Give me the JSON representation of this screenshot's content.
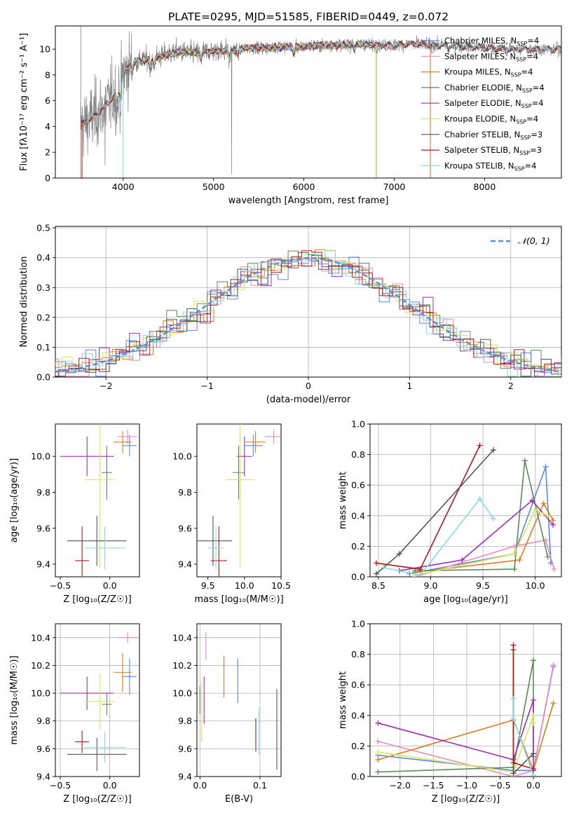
{
  "figure": {
    "title": "PLATE=0295, MJD=51585, FIBERID=0449, z=0.072"
  },
  "colors": {
    "chabrier_miles": "#5b86e5",
    "salpeter_miles": "#e88ac0",
    "kroupa_miles": "#e07b1b",
    "chabrier_elodie": "#5a8a5a",
    "salpeter_elodie": "#9a30b0",
    "kroupa_elodie": "#d4e85a",
    "chabrier_stelib": "#555555",
    "salpeter_stelib": "#b01818",
    "kroupa_stelib": "#88d9e0",
    "data": "#7f7f7f",
    "normal": "#5b8fd8",
    "grid": "#b0b0b0"
  },
  "chart_data": [
    {
      "id": "spectrum",
      "type": "line",
      "xlabel": "wavelength [Angstrom, rest frame]",
      "ylabel": "Flux [fλ10⁻¹⁷ erg cm⁻² s⁻¹ A⁻¹]",
      "xlim": [
        3250,
        8850
      ],
      "ylim": [
        0,
        11.8
      ],
      "xticks": [
        4000,
        5000,
        6000,
        7000,
        8000
      ],
      "yticks": [
        0,
        2,
        4,
        6,
        8,
        10
      ],
      "grid": false,
      "legend_position": "right",
      "legend": [
        {
          "label": "Chabrier MILES, N",
          "sub": "SSP",
          "tail": "=4",
          "color_key": "chabrier_miles"
        },
        {
          "label": "Salpeter MILES, N",
          "sub": "SSP",
          "tail": "=4",
          "color_key": "salpeter_miles"
        },
        {
          "label": "Kroupa MILES, N",
          "sub": "SSP",
          "tail": "=4",
          "color_key": "kroupa_miles"
        },
        {
          "label": "Chabrier ELODIE, N",
          "sub": "SSP",
          "tail": "=4",
          "color_key": "chabrier_elodie"
        },
        {
          "label": "Salpeter ELODIE, N",
          "sub": "SSP",
          "tail": "=4",
          "color_key": "salpeter_elodie"
        },
        {
          "label": "Kroupa ELODIE, N",
          "sub": "SSP",
          "tail": "=4",
          "color_key": "kroupa_elodie"
        },
        {
          "label": "Chabrier STELIB, N",
          "sub": "SSP",
          "tail": "=3",
          "color_key": "chabrier_stelib"
        },
        {
          "label": "Salpeter STELIB, N",
          "sub": "SSP",
          "tail": "=3",
          "color_key": "salpeter_stelib"
        },
        {
          "label": "Kroupa STELIB, N",
          "sub": "SSP",
          "tail": "=4",
          "color_key": "kroupa_stelib"
        }
      ],
      "continuum": {
        "x": [
          3530,
          3650,
          3800,
          3900,
          3960,
          4000,
          4100,
          4200,
          4400,
          4600,
          4800,
          5000,
          5200,
          5400,
          5600,
          5800,
          6000,
          6200,
          6400,
          6600,
          6800,
          7000,
          7200,
          7400,
          7600,
          7800,
          8000,
          8200,
          8400,
          8600,
          8800
        ],
        "y": [
          4.1,
          4.6,
          5.6,
          6.4,
          7.0,
          8.0,
          9.0,
          9.1,
          9.4,
          9.8,
          9.7,
          9.9,
          9.9,
          10.1,
          10.1,
          10.2,
          10.2,
          10.3,
          10.3,
          10.4,
          10.3,
          10.3,
          10.4,
          10.3,
          10.3,
          10.2,
          10.1,
          10.0,
          10.0,
          10.0,
          10.0
        ]
      }
    },
    {
      "id": "residuals",
      "type": "histogram",
      "xlabel": "(data-model)/error",
      "ylabel": "Normed distribution",
      "xlim": [
        -2.5,
        2.5
      ],
      "ylim": [
        0,
        0.505
      ],
      "xticks": [
        -2,
        -1,
        0,
        1,
        2
      ],
      "xticklabels": [
        "−2",
        "−1",
        "0",
        "1",
        "2"
      ],
      "yticks": [
        0.0,
        0.1,
        0.2,
        0.3,
        0.4,
        0.5
      ],
      "grid": true,
      "legend_position": "top-right",
      "legend_label": "𝒩(0, 1)"
    },
    {
      "id": "age_vs_Z",
      "type": "scatter",
      "xlabel": "Z [log₁₀(Z/Z☉)]",
      "ylabel": "age  [log₁₀(age/yr)]",
      "xlim": [
        -0.55,
        0.3
      ],
      "ylim": [
        9.33,
        10.18
      ],
      "xticks": [
        -0.5,
        0.0
      ],
      "xticklabels": [
        "−0.5",
        "0.0"
      ],
      "yticks": [
        9.4,
        9.6,
        9.8,
        10.0
      ],
      "grid": false,
      "points": [
        {
          "model": "chabrier_miles",
          "x": 0.2,
          "y": 10.06,
          "xerr": 0.07,
          "yerr": 0.06
        },
        {
          "model": "salpeter_miles",
          "x": 0.18,
          "y": 10.11,
          "xerr": 0.1,
          "yerr": 0.04
        },
        {
          "model": "kroupa_miles",
          "x": 0.13,
          "y": 10.08,
          "xerr": 0.09,
          "yerr": 0.06
        },
        {
          "model": "chabrier_elodie",
          "x": -0.03,
          "y": 9.91,
          "xerr": 0.05,
          "yerr": 0.15
        },
        {
          "model": "salpeter_elodie",
          "x": -0.23,
          "y": 10.0,
          "xerr": 0.27,
          "yerr": 0.11
        },
        {
          "model": "kroupa_elodie",
          "x": -0.1,
          "y": 9.87,
          "xerr": 0.15,
          "yerr": 0.49
        },
        {
          "model": "chabrier_stelib",
          "x": -0.13,
          "y": 9.53,
          "xerr": 0.3,
          "yerr": 0.14
        },
        {
          "model": "salpeter_stelib",
          "x": -0.28,
          "y": 9.42,
          "xerr": 0.07,
          "yerr": 0.19
        },
        {
          "model": "kroupa_stelib",
          "x": -0.05,
          "y": 9.49,
          "xerr": 0.21,
          "yerr": 0.12
        }
      ]
    },
    {
      "id": "age_vs_mass",
      "type": "scatter",
      "xlabel": "mass [log₁₀(M/M☉)]",
      "ylabel": "",
      "xlim": [
        9.35,
        10.5
      ],
      "ylim": [
        9.33,
        10.18
      ],
      "xticks": [
        9.5,
        10.0,
        10.5
      ],
      "xticklabels": [
        "9.5",
        "10.0",
        "10.5"
      ],
      "yticks": [
        9.4,
        9.6,
        9.8,
        10.0
      ],
      "grid": false,
      "points": [
        {
          "model": "chabrier_miles",
          "x": 10.12,
          "y": 10.06,
          "xerr": 0.13,
          "yerr": 0.06
        },
        {
          "model": "salpeter_miles",
          "x": 10.4,
          "y": 10.11,
          "xerr": 0.12,
          "yerr": 0.04
        },
        {
          "model": "kroupa_miles",
          "x": 10.15,
          "y": 10.08,
          "xerr": 0.14,
          "yerr": 0.06
        },
        {
          "model": "chabrier_elodie",
          "x": 9.92,
          "y": 9.91,
          "xerr": 0.08,
          "yerr": 0.15
        },
        {
          "model": "salpeter_elodie",
          "x": 10.0,
          "y": 10.0,
          "xerr": 0.1,
          "yerr": 0.11
        },
        {
          "model": "kroupa_elodie",
          "x": 9.94,
          "y": 9.87,
          "xerr": 0.2,
          "yerr": 0.49
        },
        {
          "model": "chabrier_stelib",
          "x": 9.57,
          "y": 9.53,
          "xerr": 0.26,
          "yerr": 0.14
        },
        {
          "model": "salpeter_stelib",
          "x": 9.65,
          "y": 9.42,
          "xerr": 0.11,
          "yerr": 0.19
        },
        {
          "model": "kroupa_stelib",
          "x": 9.61,
          "y": 9.49,
          "xerr": 0.11,
          "yerr": 0.12
        }
      ]
    },
    {
      "id": "weight_vs_age",
      "type": "line",
      "xlabel": "age  [log₁₀(age/yr)]",
      "ylabel": "mass weight",
      "xlim": [
        8.42,
        10.25
      ],
      "ylim": [
        0,
        1.0
      ],
      "xticks": [
        8.5,
        9.0,
        9.5,
        10.0
      ],
      "xticklabels": [
        "8.5",
        "9.0",
        "9.5",
        "10.0"
      ],
      "yticks": [
        0.0,
        0.2,
        0.4,
        0.6,
        0.8,
        1.0
      ],
      "grid": true,
      "series": [
        {
          "model": "chabrier_miles",
          "x": [
            8.8,
            9.8,
            10.1,
            10.15
          ],
          "y": [
            0.02,
            0.15,
            0.72,
            0.09
          ]
        },
        {
          "model": "salpeter_miles",
          "x": [
            8.85,
            9.8,
            10.1,
            10.18
          ],
          "y": [
            0.0,
            0.2,
            0.24,
            0.05
          ]
        },
        {
          "model": "kroupa_miles",
          "x": [
            8.85,
            9.85,
            10.08,
            10.17
          ],
          "y": [
            0.03,
            0.11,
            0.48,
            0.37
          ]
        },
        {
          "model": "chabrier_elodie",
          "x": [
            8.85,
            9.8,
            9.9,
            10.12
          ],
          "y": [
            0.04,
            0.05,
            0.76,
            0.13
          ]
        },
        {
          "model": "salpeter_elodie",
          "x": [
            8.7,
            9.3,
            9.97,
            10.17
          ],
          "y": [
            0.04,
            0.11,
            0.5,
            0.34
          ]
        },
        {
          "model": "kroupa_elodie",
          "x": [
            8.85,
            9.8,
            10.0,
            10.12
          ],
          "y": [
            0.01,
            0.15,
            0.44,
            0.4
          ]
        },
        {
          "model": "chabrier_stelib",
          "x": [
            8.48,
            8.7,
            9.6
          ],
          "y": [
            0.02,
            0.15,
            0.83
          ]
        },
        {
          "model": "salpeter_stelib",
          "x": [
            8.48,
            8.9,
            9.47
          ],
          "y": [
            0.09,
            0.05,
            0.86
          ]
        },
        {
          "model": "kroupa_stelib",
          "x": [
            8.55,
            8.9,
            9.47,
            9.6
          ],
          "y": [
            0.06,
            0.01,
            0.51,
            0.38
          ]
        }
      ]
    },
    {
      "id": "mass_vs_Z",
      "type": "scatter",
      "xlabel": "Z [log₁₀(Z/Z☉)]",
      "ylabel": "mass [log₁₀(M/M☉)]",
      "xlim": [
        -0.55,
        0.3
      ],
      "ylim": [
        9.4,
        10.5
      ],
      "xticks": [
        -0.5,
        0.0
      ],
      "xticklabels": [
        "−0.5",
        "0.0"
      ],
      "yticks": [
        9.4,
        9.6,
        9.8,
        10.0,
        10.2,
        10.4
      ],
      "grid": true,
      "points": [
        {
          "model": "chabrier_miles",
          "x": 0.2,
          "y": 10.12,
          "xerr": 0.07,
          "yerr": 0.13
        },
        {
          "model": "salpeter_miles",
          "x": 0.18,
          "y": 10.4,
          "xerr": 0.1,
          "yerr": 0.04
        },
        {
          "model": "kroupa_miles",
          "x": 0.13,
          "y": 10.15,
          "xerr": 0.09,
          "yerr": 0.14
        },
        {
          "model": "chabrier_elodie",
          "x": -0.03,
          "y": 9.92,
          "xerr": 0.05,
          "yerr": 0.08
        },
        {
          "model": "salpeter_elodie",
          "x": -0.23,
          "y": 10.0,
          "xerr": 0.27,
          "yerr": 0.12
        },
        {
          "model": "kroupa_elodie",
          "x": -0.1,
          "y": 9.94,
          "xerr": 0.15,
          "yerr": 0.2
        },
        {
          "model": "chabrier_stelib",
          "x": -0.13,
          "y": 9.56,
          "xerr": 0.3,
          "yerr": 0.12
        },
        {
          "model": "salpeter_stelib",
          "x": -0.28,
          "y": 9.65,
          "xerr": 0.07,
          "yerr": 0.08
        },
        {
          "model": "kroupa_stelib",
          "x": -0.05,
          "y": 9.61,
          "xerr": 0.21,
          "yerr": 0.11
        }
      ]
    },
    {
      "id": "mass_vs_ebv",
      "type": "scatter",
      "xlabel": "E(B-V)",
      "ylabel": "",
      "xlim": [
        -0.005,
        0.135
      ],
      "ylim": [
        9.4,
        10.5
      ],
      "xticks": [
        0.0,
        0.1
      ],
      "xticklabels": [
        "0.0",
        "0.1"
      ],
      "yticks": [
        9.4,
        9.6,
        9.8,
        10.0,
        10.2,
        10.4
      ],
      "grid": true,
      "points": [
        {
          "model": "chabrier_miles",
          "x": 0.063,
          "y": 10.09,
          "xerr": 0,
          "yerr": 0.16
        },
        {
          "model": "salpeter_miles",
          "x": 0.01,
          "y": 10.34,
          "xerr": 0,
          "yerr": 0.1
        },
        {
          "model": "kroupa_miles",
          "x": 0.04,
          "y": 10.12,
          "xerr": 0,
          "yerr": 0.15
        },
        {
          "model": "chabrier_elodie",
          "x": 0.0,
          "y": 9.95,
          "xerr": 0,
          "yerr": 0.1
        },
        {
          "model": "salpeter_elodie",
          "x": 0.007,
          "y": 9.95,
          "xerr": 0,
          "yerr": 0.17
        },
        {
          "model": "kroupa_elodie",
          "x": 0.003,
          "y": 9.87,
          "xerr": 0,
          "yerr": 0.22
        },
        {
          "model": "chabrier_stelib",
          "x": 0.128,
          "y": 9.74,
          "xerr": 0,
          "yerr": 0.29
        },
        {
          "model": "salpeter_stelib",
          "x": 0.093,
          "y": 9.7,
          "xerr": 0,
          "yerr": 0.12
        },
        {
          "model": "kroupa_stelib",
          "x": 0.098,
          "y": 9.73,
          "xerr": 0,
          "yerr": 0.17
        }
      ]
    },
    {
      "id": "weight_vs_Z",
      "type": "line",
      "xlabel": "Z [log₁₀(Z/Z☉)]",
      "ylabel": "mass weight",
      "xlim": [
        -2.45,
        0.42
      ],
      "ylim": [
        0,
        1.0
      ],
      "xticks": [
        -2.0,
        -1.5,
        -1.0,
        -0.5,
        0.0
      ],
      "xticklabels": [
        "−2.0",
        "−1.5",
        "−1.0",
        "−0.5",
        "0.0"
      ],
      "yticks": [
        0.0,
        0.2,
        0.4,
        0.6,
        0.8,
        1.0
      ],
      "grid": true,
      "series": [
        {
          "model": "chabrier_miles",
          "x": [
            -2.33,
            -0.3,
            0.0,
            0.3
          ],
          "y": [
            0.14,
            0.04,
            0.04,
            0.72
          ]
        },
        {
          "model": "salpeter_miles",
          "x": [
            -2.33,
            -0.3,
            0.0,
            0.3
          ],
          "y": [
            0.23,
            0.0,
            0.04,
            0.73
          ]
        },
        {
          "model": "kroupa_miles",
          "x": [
            -2.33,
            -0.3,
            0.0,
            0.3
          ],
          "y": [
            0.11,
            0.37,
            0.04,
            0.48
          ]
        },
        {
          "model": "chabrier_elodie",
          "x": [
            -2.33,
            -0.3,
            0.0,
            0.0
          ],
          "y": [
            0.03,
            0.06,
            0.76,
            0.13
          ]
        },
        {
          "model": "salpeter_elodie",
          "x": [
            -2.33,
            -0.3,
            0.0,
            0.0
          ],
          "y": [
            0.35,
            0.11,
            0.5,
            0.04
          ]
        },
        {
          "model": "kroupa_elodie",
          "x": [
            -2.33,
            -0.3,
            0.0,
            0.0
          ],
          "y": [
            0.16,
            0.03,
            0.4,
            0.35
          ]
        },
        {
          "model": "chabrier_stelib",
          "x": [
            -0.3,
            -0.3,
            0.0
          ],
          "y": [
            0.83,
            0.02,
            0.15
          ]
        },
        {
          "model": "salpeter_stelib",
          "x": [
            -0.3,
            -0.3,
            0.0
          ],
          "y": [
            0.86,
            0.09,
            0.05
          ]
        },
        {
          "model": "kroupa_stelib",
          "x": [
            -0.3,
            -0.3,
            0.0
          ],
          "y": [
            0.51,
            0.38,
            0.01
          ]
        }
      ]
    }
  ]
}
